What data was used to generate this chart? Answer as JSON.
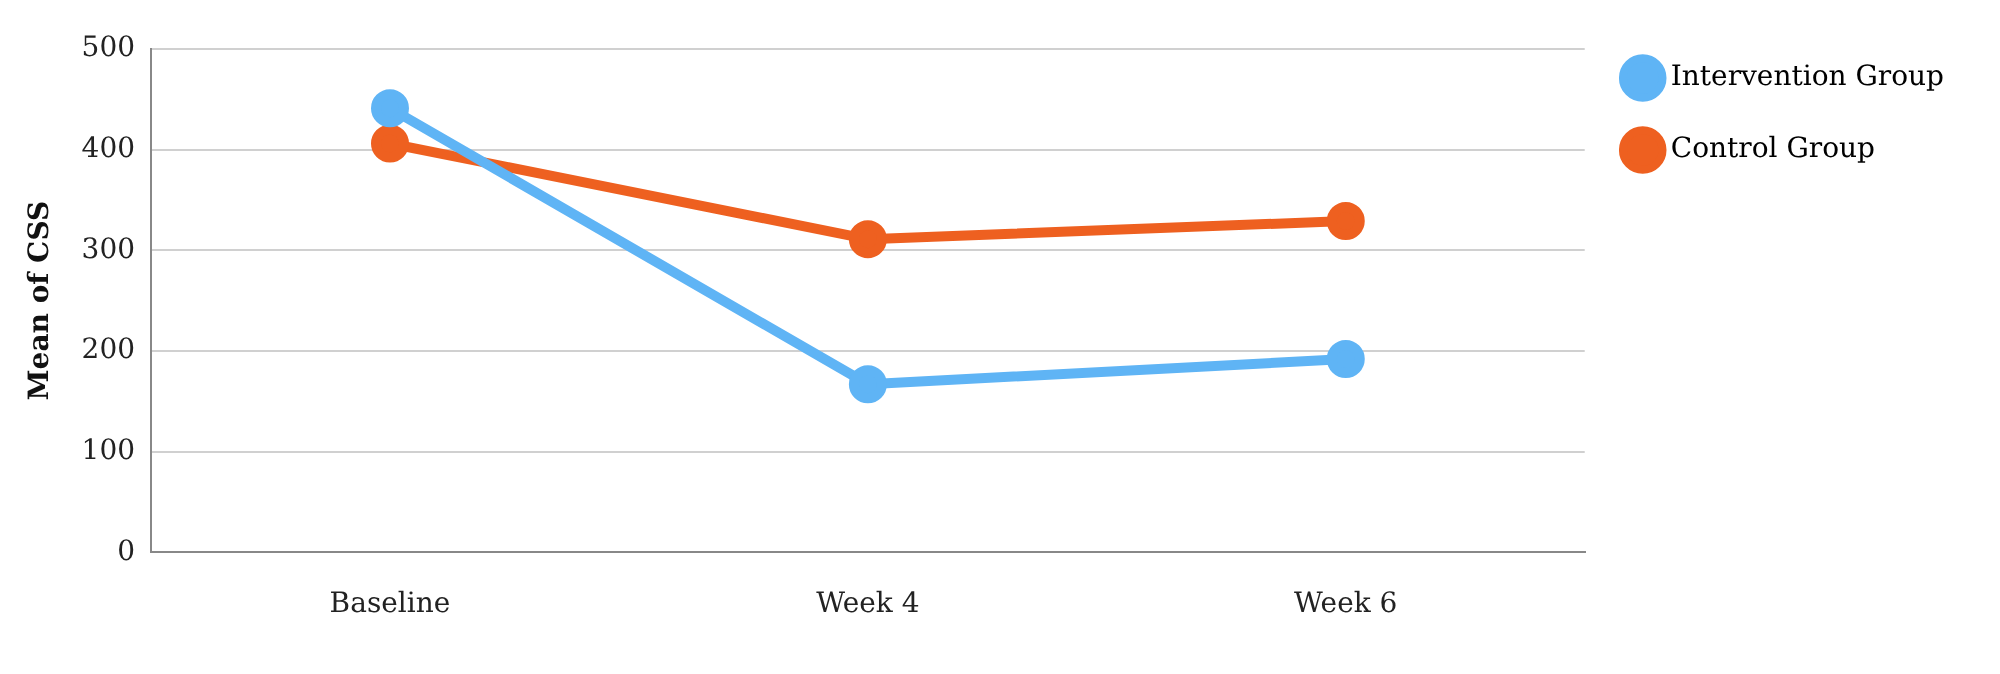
{
  "chart_data": {
    "type": "line",
    "ylabel": "Mean of CSS",
    "categories": [
      "Baseline",
      "Week 4",
      "Week 6"
    ],
    "series": [
      {
        "name": "Intervention Group",
        "color": "#5fb4f5",
        "values": [
          441,
          167,
          192
        ]
      },
      {
        "name": "Control Group",
        "color": "#ee6020",
        "values": [
          406,
          311,
          329
        ]
      }
    ],
    "ylim": [
      0,
      500
    ],
    "yticks": [
      0,
      100,
      200,
      300,
      400,
      500
    ],
    "grid": "y",
    "legend": "top right",
    "marker": "circle",
    "line_style": "solid"
  }
}
